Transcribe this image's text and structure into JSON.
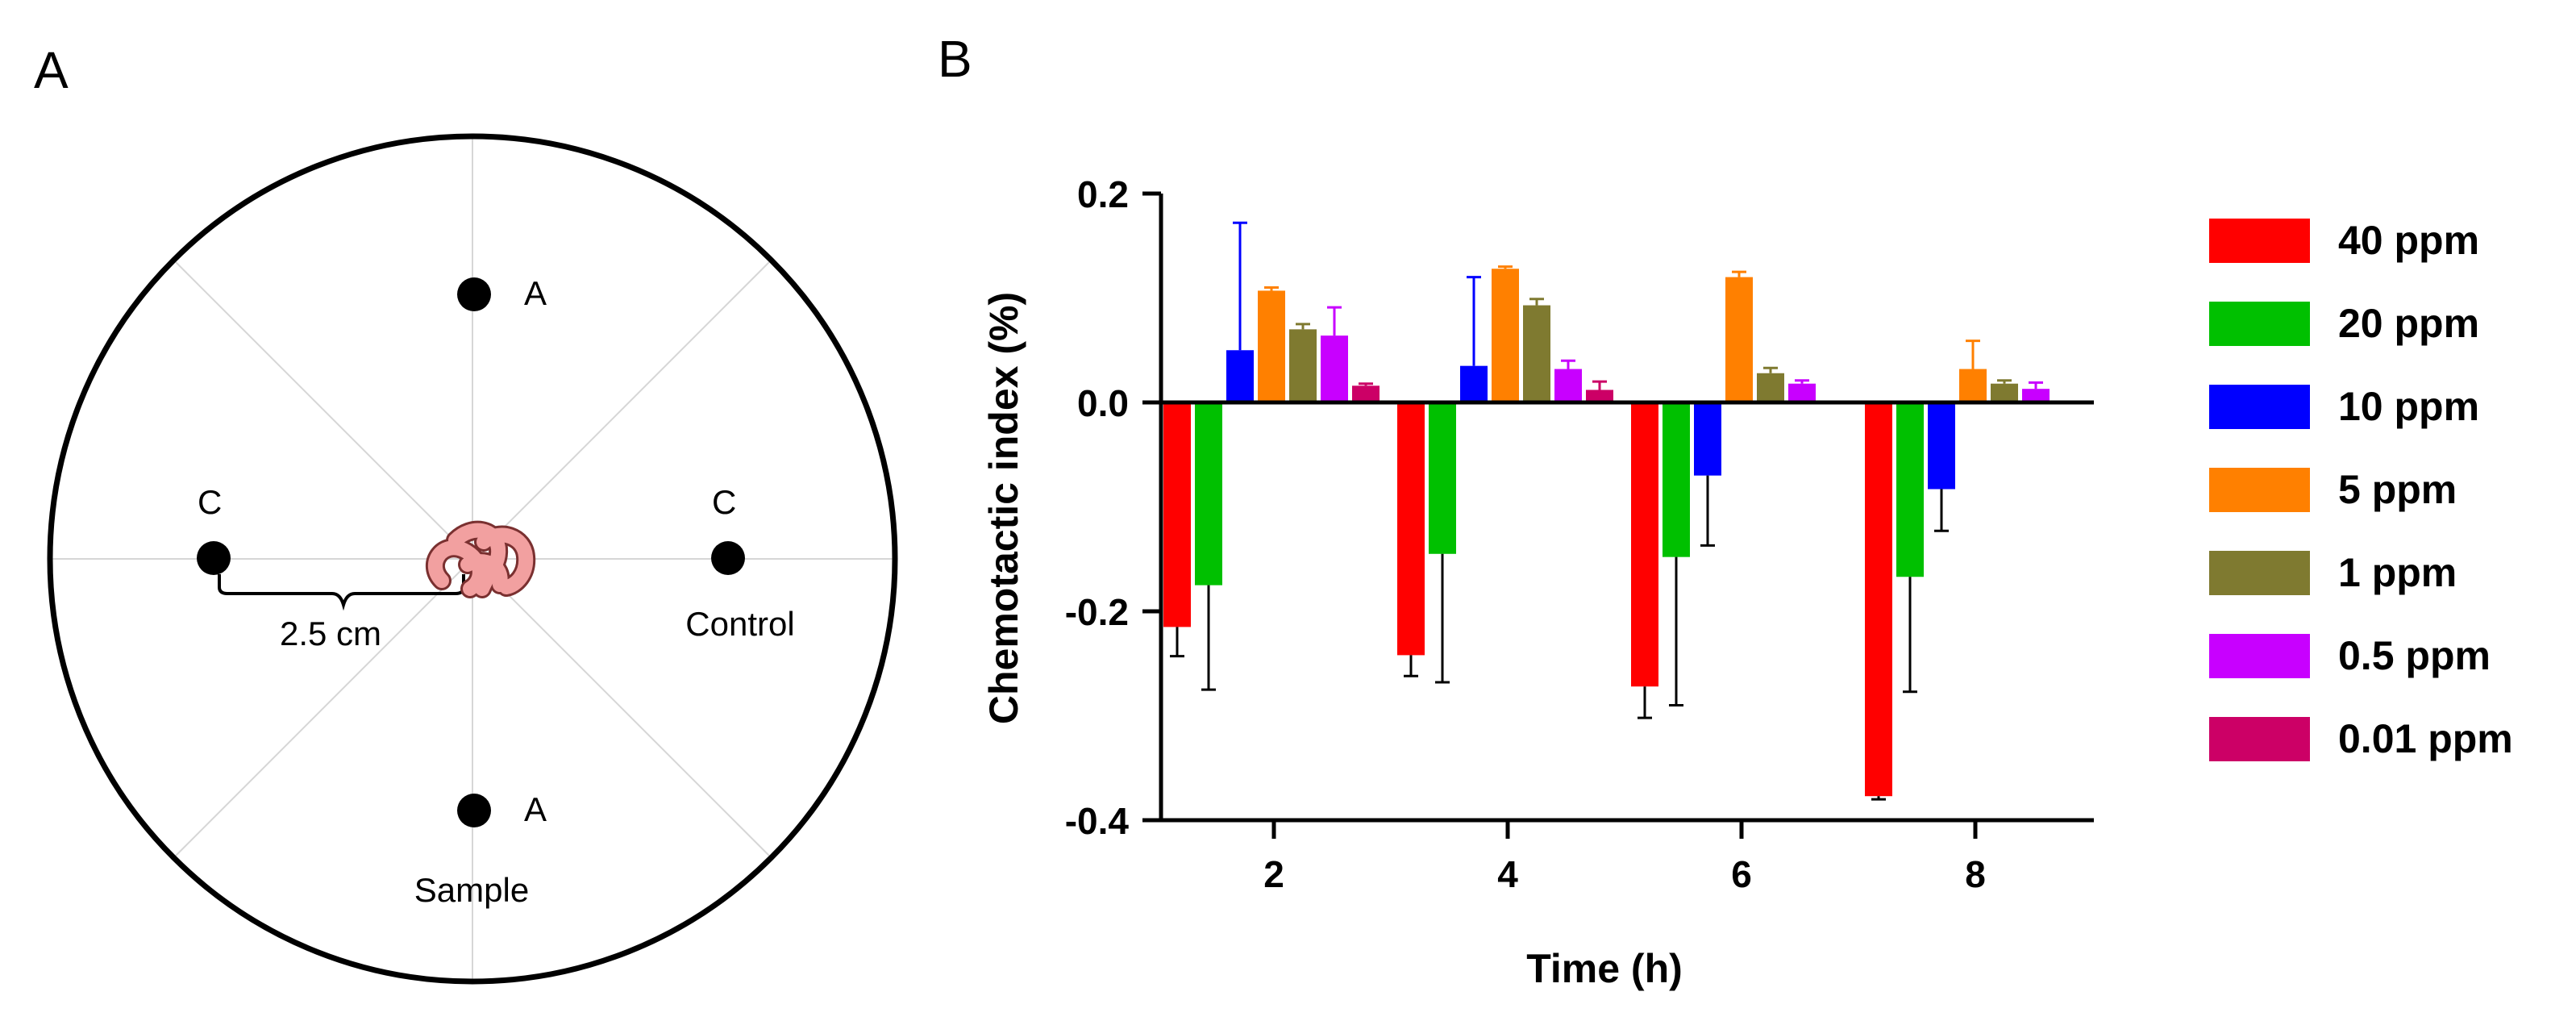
{
  "panel_a": {
    "letter": "A",
    "labels": {
      "a_top": "A",
      "a_bottom": "A",
      "c_left": "C",
      "c_right": "C",
      "distance": "2.5 cm",
      "sample": "Sample",
      "control": "Control"
    }
  },
  "panel_b": {
    "letter": "B"
  },
  "chart_data": {
    "type": "bar",
    "title": "",
    "xlabel": "Time (h)",
    "ylabel": "Chemotactic index (%)",
    "ylim": [
      -0.4,
      0.2
    ],
    "yticks": [
      "0.2",
      "0.0",
      "-0.2",
      "-0.4"
    ],
    "categories": [
      "2",
      "4",
      "6",
      "8"
    ],
    "series": [
      {
        "name": "40 ppm",
        "color": "#ff0000",
        "values": [
          -0.215,
          -0.242,
          -0.272,
          -0.377
        ],
        "errors": [
          0.028,
          0.02,
          0.03,
          0.003
        ]
      },
      {
        "name": "20 ppm",
        "color": "#00c000",
        "values": [
          -0.175,
          -0.145,
          -0.148,
          -0.167
        ],
        "errors": [
          0.1,
          0.123,
          0.142,
          0.11
        ]
      },
      {
        "name": "10 ppm",
        "color": "#0000ff",
        "values": [
          0.05,
          0.035,
          -0.07,
          -0.083
        ],
        "errors": [
          0.122,
          0.085,
          0.067,
          0.04
        ]
      },
      {
        "name": "5 ppm",
        "color": "#ff8000",
        "values": [
          0.107,
          0.128,
          0.12,
          0.032
        ],
        "errors": [
          0.003,
          0.002,
          0.005,
          0.027
        ]
      },
      {
        "name": "1 ppm",
        "color": "#7f7a30",
        "values": [
          0.07,
          0.093,
          0.028,
          0.018
        ],
        "errors": [
          0.005,
          0.006,
          0.005,
          0.003
        ]
      },
      {
        "name": "0.5 ppm",
        "color": "#c800ff",
        "values": [
          0.064,
          0.032,
          0.018,
          0.013
        ],
        "errors": [
          0.027,
          0.008,
          0.003,
          0.006
        ]
      },
      {
        "name": "0.01 ppm",
        "color": "#cc0066",
        "values": [
          0.016,
          0.012,
          0.0,
          0.0
        ],
        "errors": [
          0.002,
          0.008,
          0.0,
          0.0
        ]
      }
    ]
  }
}
